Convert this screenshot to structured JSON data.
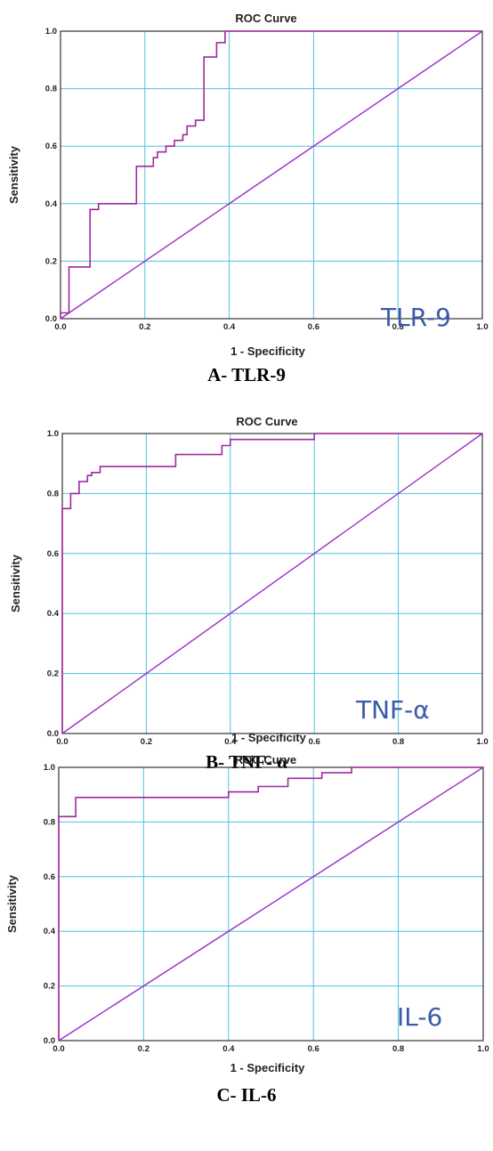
{
  "chart_data": [
    {
      "type": "line",
      "title": "ROC Curve",
      "xlabel": "1 - Specificity",
      "ylabel": "Sensitivity",
      "xlim": [
        0,
        1
      ],
      "ylim": [
        0,
        1
      ],
      "ticks": [
        "0.0",
        "0.2",
        "0.4",
        "0.6",
        "0.8",
        "1.0"
      ],
      "grid": true,
      "annotation": "TLR-9",
      "caption": "A- TLR-9",
      "colors": {
        "curve": "#a0289e",
        "reference": "#9b2ec8",
        "grid": "#4fc3dc",
        "annotation": "#3b5aa8"
      },
      "series": [
        {
          "x": [
            0,
            0,
            0.02,
            0.02,
            0.07,
            0.07,
            0.09,
            0.09,
            0.18,
            0.18,
            0.22,
            0.22,
            0.23,
            0.23,
            0.25,
            0.25,
            0.27,
            0.27,
            0.29,
            0.29,
            0.3,
            0.3,
            0.32,
            0.32,
            0.34,
            0.34,
            0.37,
            0.37,
            0.39,
            0.39,
            1.0
          ],
          "y": [
            0,
            0.02,
            0.02,
            0.18,
            0.18,
            0.38,
            0.38,
            0.4,
            0.4,
            0.53,
            0.53,
            0.56,
            0.56,
            0.58,
            0.58,
            0.6,
            0.6,
            0.62,
            0.62,
            0.64,
            0.64,
            0.67,
            0.67,
            0.69,
            0.69,
            0.91,
            0.91,
            0.96,
            0.96,
            1.0,
            1.0
          ]
        },
        {
          "x": [
            0,
            1
          ],
          "y": [
            0,
            1
          ]
        }
      ]
    },
    {
      "type": "line",
      "title": "ROC Curve",
      "xlabel": "1 - Specificity",
      "ylabel": "Sensitivity",
      "xlim": [
        0,
        1
      ],
      "ylim": [
        0,
        1
      ],
      "ticks": [
        "0.0",
        "0.2",
        "0.4",
        "0.6",
        "0.8",
        "1.0"
      ],
      "grid": true,
      "annotation": "TNF-α",
      "caption": "B- TNF- α",
      "colors": {
        "curve": "#a0289e",
        "reference": "#9b2ec8",
        "grid": "#4fc3dc",
        "annotation": "#3b5aa8"
      },
      "series": [
        {
          "x": [
            0,
            0,
            0.02,
            0.02,
            0.04,
            0.04,
            0.06,
            0.06,
            0.07,
            0.07,
            0.09,
            0.09,
            0.27,
            0.27,
            0.38,
            0.38,
            0.4,
            0.4,
            0.6,
            0.6,
            1.0
          ],
          "y": [
            0,
            0.75,
            0.75,
            0.8,
            0.8,
            0.84,
            0.84,
            0.86,
            0.86,
            0.87,
            0.87,
            0.89,
            0.89,
            0.93,
            0.93,
            0.96,
            0.96,
            0.98,
            0.98,
            1.0,
            1.0
          ]
        },
        {
          "x": [
            0,
            1
          ],
          "y": [
            0,
            1
          ]
        }
      ]
    },
    {
      "type": "line",
      "title": "ROC Curve",
      "xlabel": "1 - Specificity",
      "ylabel": "Sensitivity",
      "xlim": [
        0,
        1
      ],
      "ylim": [
        0,
        1
      ],
      "ticks": [
        "0.0",
        "0.2",
        "0.4",
        "0.6",
        "0.8",
        "1.0"
      ],
      "grid": true,
      "annotation": "IL-6",
      "caption": "C- IL-6",
      "colors": {
        "curve": "#a0289e",
        "reference": "#9b2ec8",
        "grid": "#4fc3dc",
        "annotation": "#3b5aa8"
      },
      "series": [
        {
          "x": [
            0,
            0,
            0.04,
            0.04,
            0.4,
            0.4,
            0.47,
            0.47,
            0.54,
            0.54,
            0.62,
            0.62,
            0.69,
            0.69,
            1.0
          ],
          "y": [
            0,
            0.82,
            0.82,
            0.89,
            0.89,
            0.91,
            0.91,
            0.93,
            0.93,
            0.96,
            0.96,
            0.98,
            0.98,
            1.0,
            1.0
          ]
        },
        {
          "x": [
            0,
            1
          ],
          "y": [
            0,
            1
          ]
        }
      ]
    }
  ]
}
